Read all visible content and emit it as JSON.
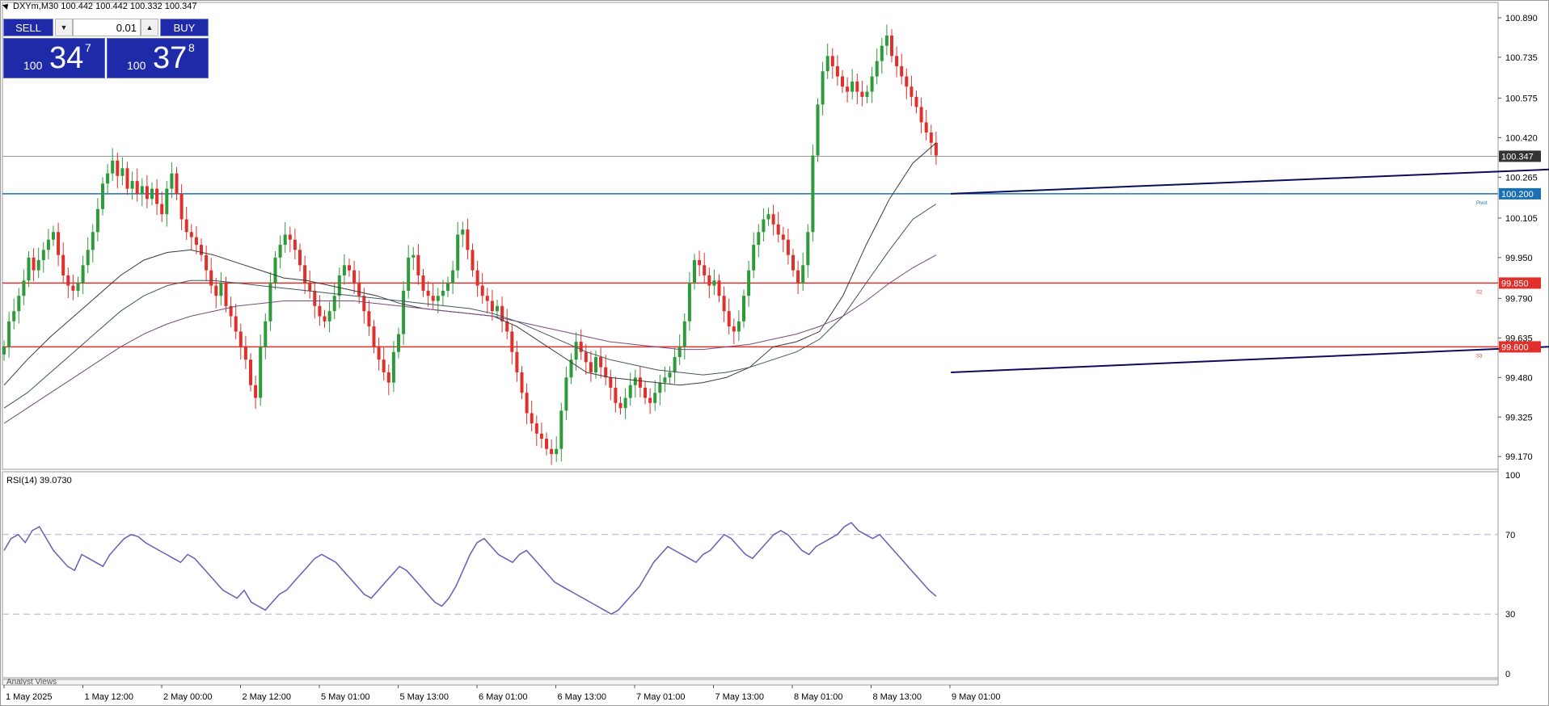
{
  "header": {
    "symbol_text": "DXYm,M30  100.442 100.442 100.332 100.347"
  },
  "trade_panel": {
    "sell_label": "SELL",
    "buy_label": "BUY",
    "lot_value": "0.01",
    "sell_price_small": "100",
    "sell_price_big": "34",
    "sell_price_sup": "7",
    "buy_price_small": "100",
    "buy_price_big": "37",
    "buy_price_sup": "8",
    "panel_color": "#1e2aa8"
  },
  "chart_data": [
    {
      "type": "line",
      "symbol": "DXYm",
      "timeframe": "M30",
      "ohlc": {
        "open": 100.442,
        "high": 100.442,
        "low": 100.332,
        "close": 100.347
      },
      "y_ticks": [
        100.89,
        100.735,
        100.575,
        100.42,
        100.265,
        100.105,
        99.95,
        99.79,
        99.635,
        99.48,
        99.325,
        99.17
      ],
      "ylim": [
        99.12,
        100.95
      ],
      "x_ticks": [
        "1 May 2025",
        "1 May 12:00",
        "2 May 00:00",
        "2 May 12:00",
        "5 May 01:00",
        "5 May 13:00",
        "6 May 01:00",
        "6 May 13:00",
        "7 May 01:00",
        "7 May 13:00",
        "8 May 01:00",
        "8 May 13:00",
        "9 May 01:00"
      ],
      "current_price": {
        "value": 100.347,
        "label": "100.347",
        "color": "#333333"
      },
      "horizontal_levels": [
        {
          "value": 100.2,
          "label": "100.200",
          "tag": "Pivot",
          "color": "#1a6fb5"
        },
        {
          "value": 99.85,
          "label": "99.850",
          "tag": "S2",
          "color": "#e0302b"
        },
        {
          "value": 99.6,
          "label": "99.600",
          "tag": "S3",
          "color": "#e0302b"
        }
      ],
      "channel_lines_color": "#0c0c5a",
      "channel_lines": [
        {
          "from": {
            "x": 24,
            "y": 100.2
          },
          "to": {
            "x": 145,
            "y": 100.96
          }
        },
        {
          "from": {
            "x": 24,
            "y": 99.5
          },
          "to": {
            "x": 190,
            "y": 100.6
          }
        },
        {
          "from": {
            "x": 69,
            "y": 99.12
          },
          "to": {
            "x": 190,
            "y": 99.85
          }
        }
      ],
      "candle_colors": {
        "up": "#2e9b3a",
        "down": "#e0302b"
      },
      "closes": [
        99.6,
        99.7,
        99.74,
        99.8,
        99.86,
        99.95,
        99.9,
        99.94,
        99.98,
        100.02,
        100.05,
        99.96,
        99.88,
        99.84,
        99.82,
        99.85,
        99.92,
        99.98,
        100.05,
        100.14,
        100.24,
        100.28,
        100.33,
        100.27,
        100.3,
        100.22,
        100.25,
        100.2,
        100.23,
        100.18,
        100.22,
        100.16,
        100.12,
        100.22,
        100.28,
        100.2,
        100.1,
        100.05,
        100.03,
        100.0,
        99.96,
        99.9,
        99.84,
        99.8,
        99.85,
        99.76,
        99.72,
        99.66,
        99.6,
        99.55,
        99.45,
        99.4,
        99.6,
        99.7,
        99.85,
        99.95,
        100.0,
        100.04,
        100.02,
        99.98,
        99.92,
        99.85,
        99.82,
        99.76,
        99.72,
        99.7,
        99.74,
        99.8,
        99.88,
        99.92,
        99.9,
        99.85,
        99.8,
        99.74,
        99.68,
        99.6,
        99.55,
        99.5,
        99.46,
        99.58,
        99.65,
        99.82,
        99.95,
        99.96,
        99.88,
        99.82,
        99.8,
        99.78,
        99.8,
        99.82,
        99.85,
        99.9,
        100.04,
        100.06,
        99.98,
        99.9,
        99.84,
        99.8,
        99.78,
        99.74,
        99.76,
        99.7,
        99.66,
        99.58,
        99.5,
        99.42,
        99.34,
        99.3,
        99.26,
        99.24,
        99.2,
        99.18,
        99.2,
        99.35,
        99.48,
        99.55,
        99.62,
        99.58,
        99.54,
        99.5,
        99.56,
        99.52,
        99.48,
        99.44,
        99.38,
        99.36,
        99.4,
        99.45,
        99.48,
        99.44,
        99.4,
        99.38,
        99.42,
        99.46,
        99.48,
        99.5,
        99.56,
        99.6,
        99.7,
        99.85,
        99.94,
        99.92,
        99.88,
        99.84,
        99.86,
        99.8,
        99.74,
        99.68,
        99.66,
        99.7,
        99.8,
        99.9,
        100.0,
        100.05,
        100.1,
        100.12,
        100.08,
        100.04,
        100.02,
        99.96,
        99.9,
        99.85,
        99.92,
        100.05,
        100.35,
        100.55,
        100.68,
        100.74,
        100.7,
        100.66,
        100.62,
        100.6,
        100.64,
        100.6,
        100.58,
        100.6,
        100.66,
        100.72,
        100.78,
        100.82,
        100.74,
        100.7,
        100.66,
        100.62,
        100.58,
        100.54,
        100.48,
        100.44,
        100.4,
        100.35
      ],
      "moving_averages": [
        {
          "name": "",
          "color": "#3a3a3a",
          "values": [
            99.45,
            99.55,
            99.64,
            99.72,
            99.8,
            99.88,
            99.94,
            99.97,
            99.98,
            99.96,
            99.93,
            99.9,
            99.87,
            99.86,
            99.84,
            99.82,
            99.8,
            99.77,
            99.75,
            99.74,
            99.73,
            99.72,
            99.68,
            99.62,
            99.56,
            99.5,
            99.48,
            99.47,
            99.46,
            99.45,
            99.46,
            99.48,
            99.52,
            99.6,
            99.62,
            99.66,
            99.8,
            100.0,
            100.18,
            100.32,
            100.4
          ]
        },
        {
          "name": "",
          "color": "#3f5560",
          "values": [
            99.36,
            99.42,
            99.5,
            99.58,
            99.66,
            99.74,
            99.8,
            99.84,
            99.86,
            99.86,
            99.85,
            99.84,
            99.83,
            99.82,
            99.81,
            99.8,
            99.79,
            99.78,
            99.77,
            99.76,
            99.75,
            99.73,
            99.7,
            99.66,
            99.62,
            99.58,
            99.55,
            99.53,
            99.51,
            99.5,
            99.49,
            99.5,
            99.52,
            99.55,
            99.58,
            99.63,
            99.72,
            99.85,
            99.98,
            100.1,
            100.16
          ]
        },
        {
          "name": "",
          "color": "#7a4a78",
          "values": [
            99.3,
            99.36,
            99.42,
            99.48,
            99.54,
            99.6,
            99.65,
            99.69,
            99.72,
            99.74,
            99.76,
            99.77,
            99.78,
            99.78,
            99.78,
            99.78,
            99.77,
            99.76,
            99.75,
            99.74,
            99.73,
            99.72,
            99.7,
            99.68,
            99.66,
            99.64,
            99.62,
            99.61,
            99.6,
            99.59,
            99.59,
            99.6,
            99.61,
            99.63,
            99.65,
            99.68,
            99.72,
            99.78,
            99.85,
            99.91,
            99.96
          ]
        }
      ]
    },
    {
      "type": "line",
      "indicator_label": "RSI(14) 39.0730",
      "ylim": [
        0,
        100
      ],
      "y_ticks": [
        100,
        70,
        30,
        0
      ],
      "levels": [
        70,
        30
      ],
      "color": "#6b5bb6",
      "values": [
        62,
        68,
        70,
        66,
        72,
        74,
        68,
        62,
        58,
        54,
        52,
        60,
        58,
        56,
        54,
        60,
        64,
        68,
        70,
        69,
        66,
        64,
        62,
        60,
        58,
        56,
        60,
        58,
        54,
        50,
        46,
        42,
        40,
        38,
        42,
        36,
        34,
        32,
        36,
        40,
        42,
        46,
        50,
        54,
        58,
        60,
        58,
        56,
        52,
        48,
        44,
        40,
        38,
        42,
        46,
        50,
        54,
        52,
        48,
        44,
        40,
        36,
        34,
        38,
        44,
        52,
        60,
        66,
        68,
        64,
        60,
        58,
        56,
        60,
        62,
        58,
        54,
        50,
        46,
        44,
        42,
        40,
        38,
        36,
        34,
        32,
        30,
        32,
        36,
        40,
        44,
        50,
        56,
        60,
        64,
        62,
        60,
        58,
        56,
        60,
        62,
        66,
        70,
        68,
        64,
        60,
        58,
        62,
        66,
        70,
        72,
        70,
        66,
        62,
        60,
        64,
        66,
        68,
        70,
        74,
        76,
        72,
        70,
        68,
        70,
        66,
        62,
        58,
        54,
        50,
        46,
        42,
        39
      ]
    }
  ],
  "footer": {
    "analyst_views": "Analyst Views"
  }
}
